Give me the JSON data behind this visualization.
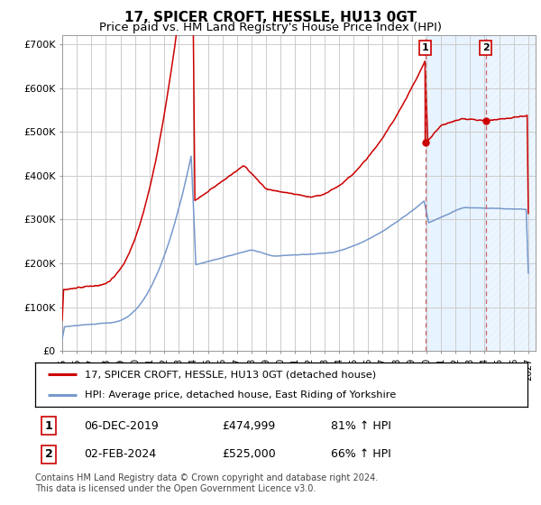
{
  "title": "17, SPICER CROFT, HESSLE, HU13 0GT",
  "subtitle": "Price paid vs. HM Land Registry's House Price Index (HPI)",
  "ylabel_ticks": [
    "£0",
    "£100K",
    "£200K",
    "£300K",
    "£400K",
    "£500K",
    "£600K",
    "£700K"
  ],
  "ytick_vals": [
    0,
    100000,
    200000,
    300000,
    400000,
    500000,
    600000,
    700000
  ],
  "ylim": [
    0,
    720000
  ],
  "xlim_start": 1995.0,
  "xlim_end": 2027.5,
  "red_line_color": "#cc0000",
  "blue_line_color": "#7799cc",
  "sale1_x": 2019.92,
  "sale1_y": 474999,
  "sale2_x": 2024.08,
  "sale2_y": 525000,
  "vline_color": "#cc6666",
  "shade_color": "#ddeeff",
  "legend_label1": "17, SPICER CROFT, HESSLE, HU13 0GT (detached house)",
  "legend_label2": "HPI: Average price, detached house, East Riding of Yorkshire",
  "table_row1": [
    "1",
    "06-DEC-2019",
    "£474,999",
    "81% ↑ HPI"
  ],
  "table_row2": [
    "2",
    "02-FEB-2024",
    "£525,000",
    "66% ↑ HPI"
  ],
  "footnote": "Contains HM Land Registry data © Crown copyright and database right 2024.\nThis data is licensed under the Open Government Licence v3.0.",
  "bg_color": "#ffffff",
  "grid_color": "#cccccc",
  "title_fontsize": 11,
  "subtitle_fontsize": 9.5,
  "tick_fontsize": 8,
  "hatch_color": "#aabbdd"
}
